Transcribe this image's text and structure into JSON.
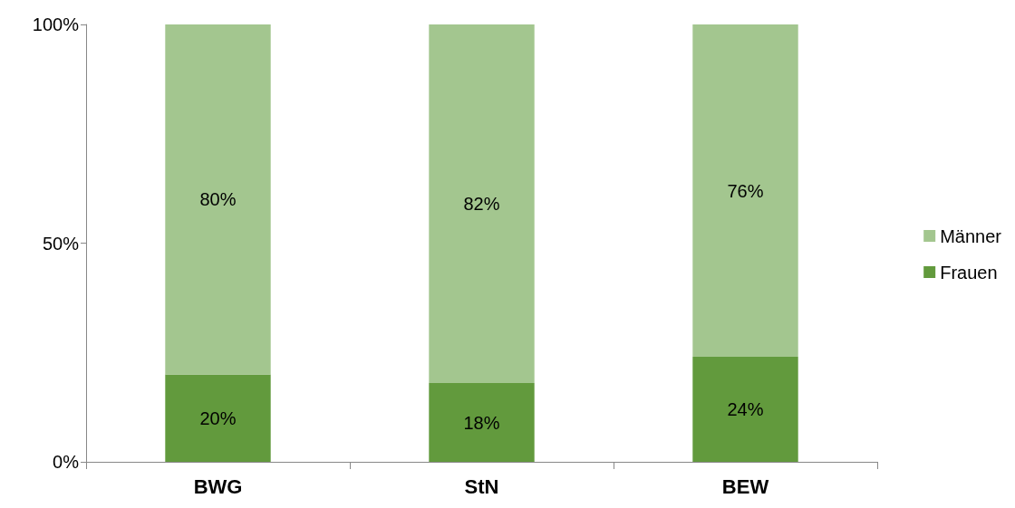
{
  "chart_data": {
    "type": "bar",
    "stacked": true,
    "categories": [
      "BWG",
      "StN",
      "BEW"
    ],
    "series": [
      {
        "name": "Frauen",
        "color": "#629a3d",
        "values": [
          20,
          18,
          24
        ],
        "value_labels": [
          "20%",
          "18%",
          "24%"
        ]
      },
      {
        "name": "Männer",
        "color": "#a3c68f",
        "values": [
          80,
          82,
          76
        ],
        "value_labels": [
          "80%",
          "82%",
          "76%"
        ]
      }
    ],
    "ylim": [
      0,
      100
    ],
    "yticks": [
      {
        "value": 0,
        "label": "0%"
      },
      {
        "value": 50,
        "label": "50%"
      },
      {
        "value": 100,
        "label": "100%"
      }
    ],
    "legend": "right"
  }
}
